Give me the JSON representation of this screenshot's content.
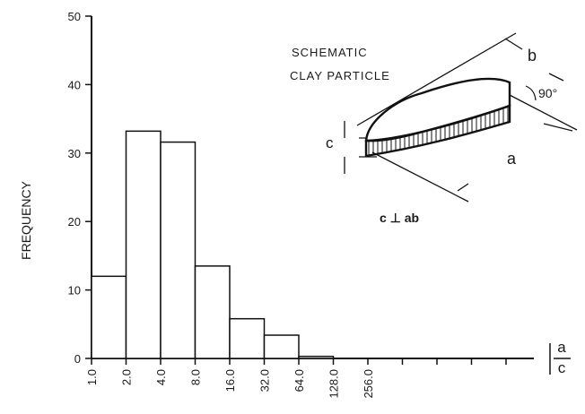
{
  "chart_data": {
    "type": "bar",
    "ylabel": "FREQUENCY",
    "xlabel_numerator": "a",
    "xlabel_denominator": "c",
    "ylim": [
      0,
      50
    ],
    "yticks": [
      "0",
      "10",
      "20",
      "30",
      "40",
      "50"
    ],
    "bin_edges": [
      "1.0",
      "2.0",
      "4.0",
      "8.0",
      "16.0",
      "32.0",
      "64.0",
      "128.0",
      "256.0"
    ],
    "values": [
      12,
      33.2,
      31.6,
      13.5,
      5.8,
      3.4,
      0.3,
      0
    ],
    "grid": false
  },
  "inset": {
    "title_line1": "SCHEMATIC",
    "title_line2": "CLAY PARTICLE",
    "label_a": "a",
    "label_b": "b",
    "label_c": "c",
    "angle": "90°",
    "relation": "c ⊥ ab"
  }
}
